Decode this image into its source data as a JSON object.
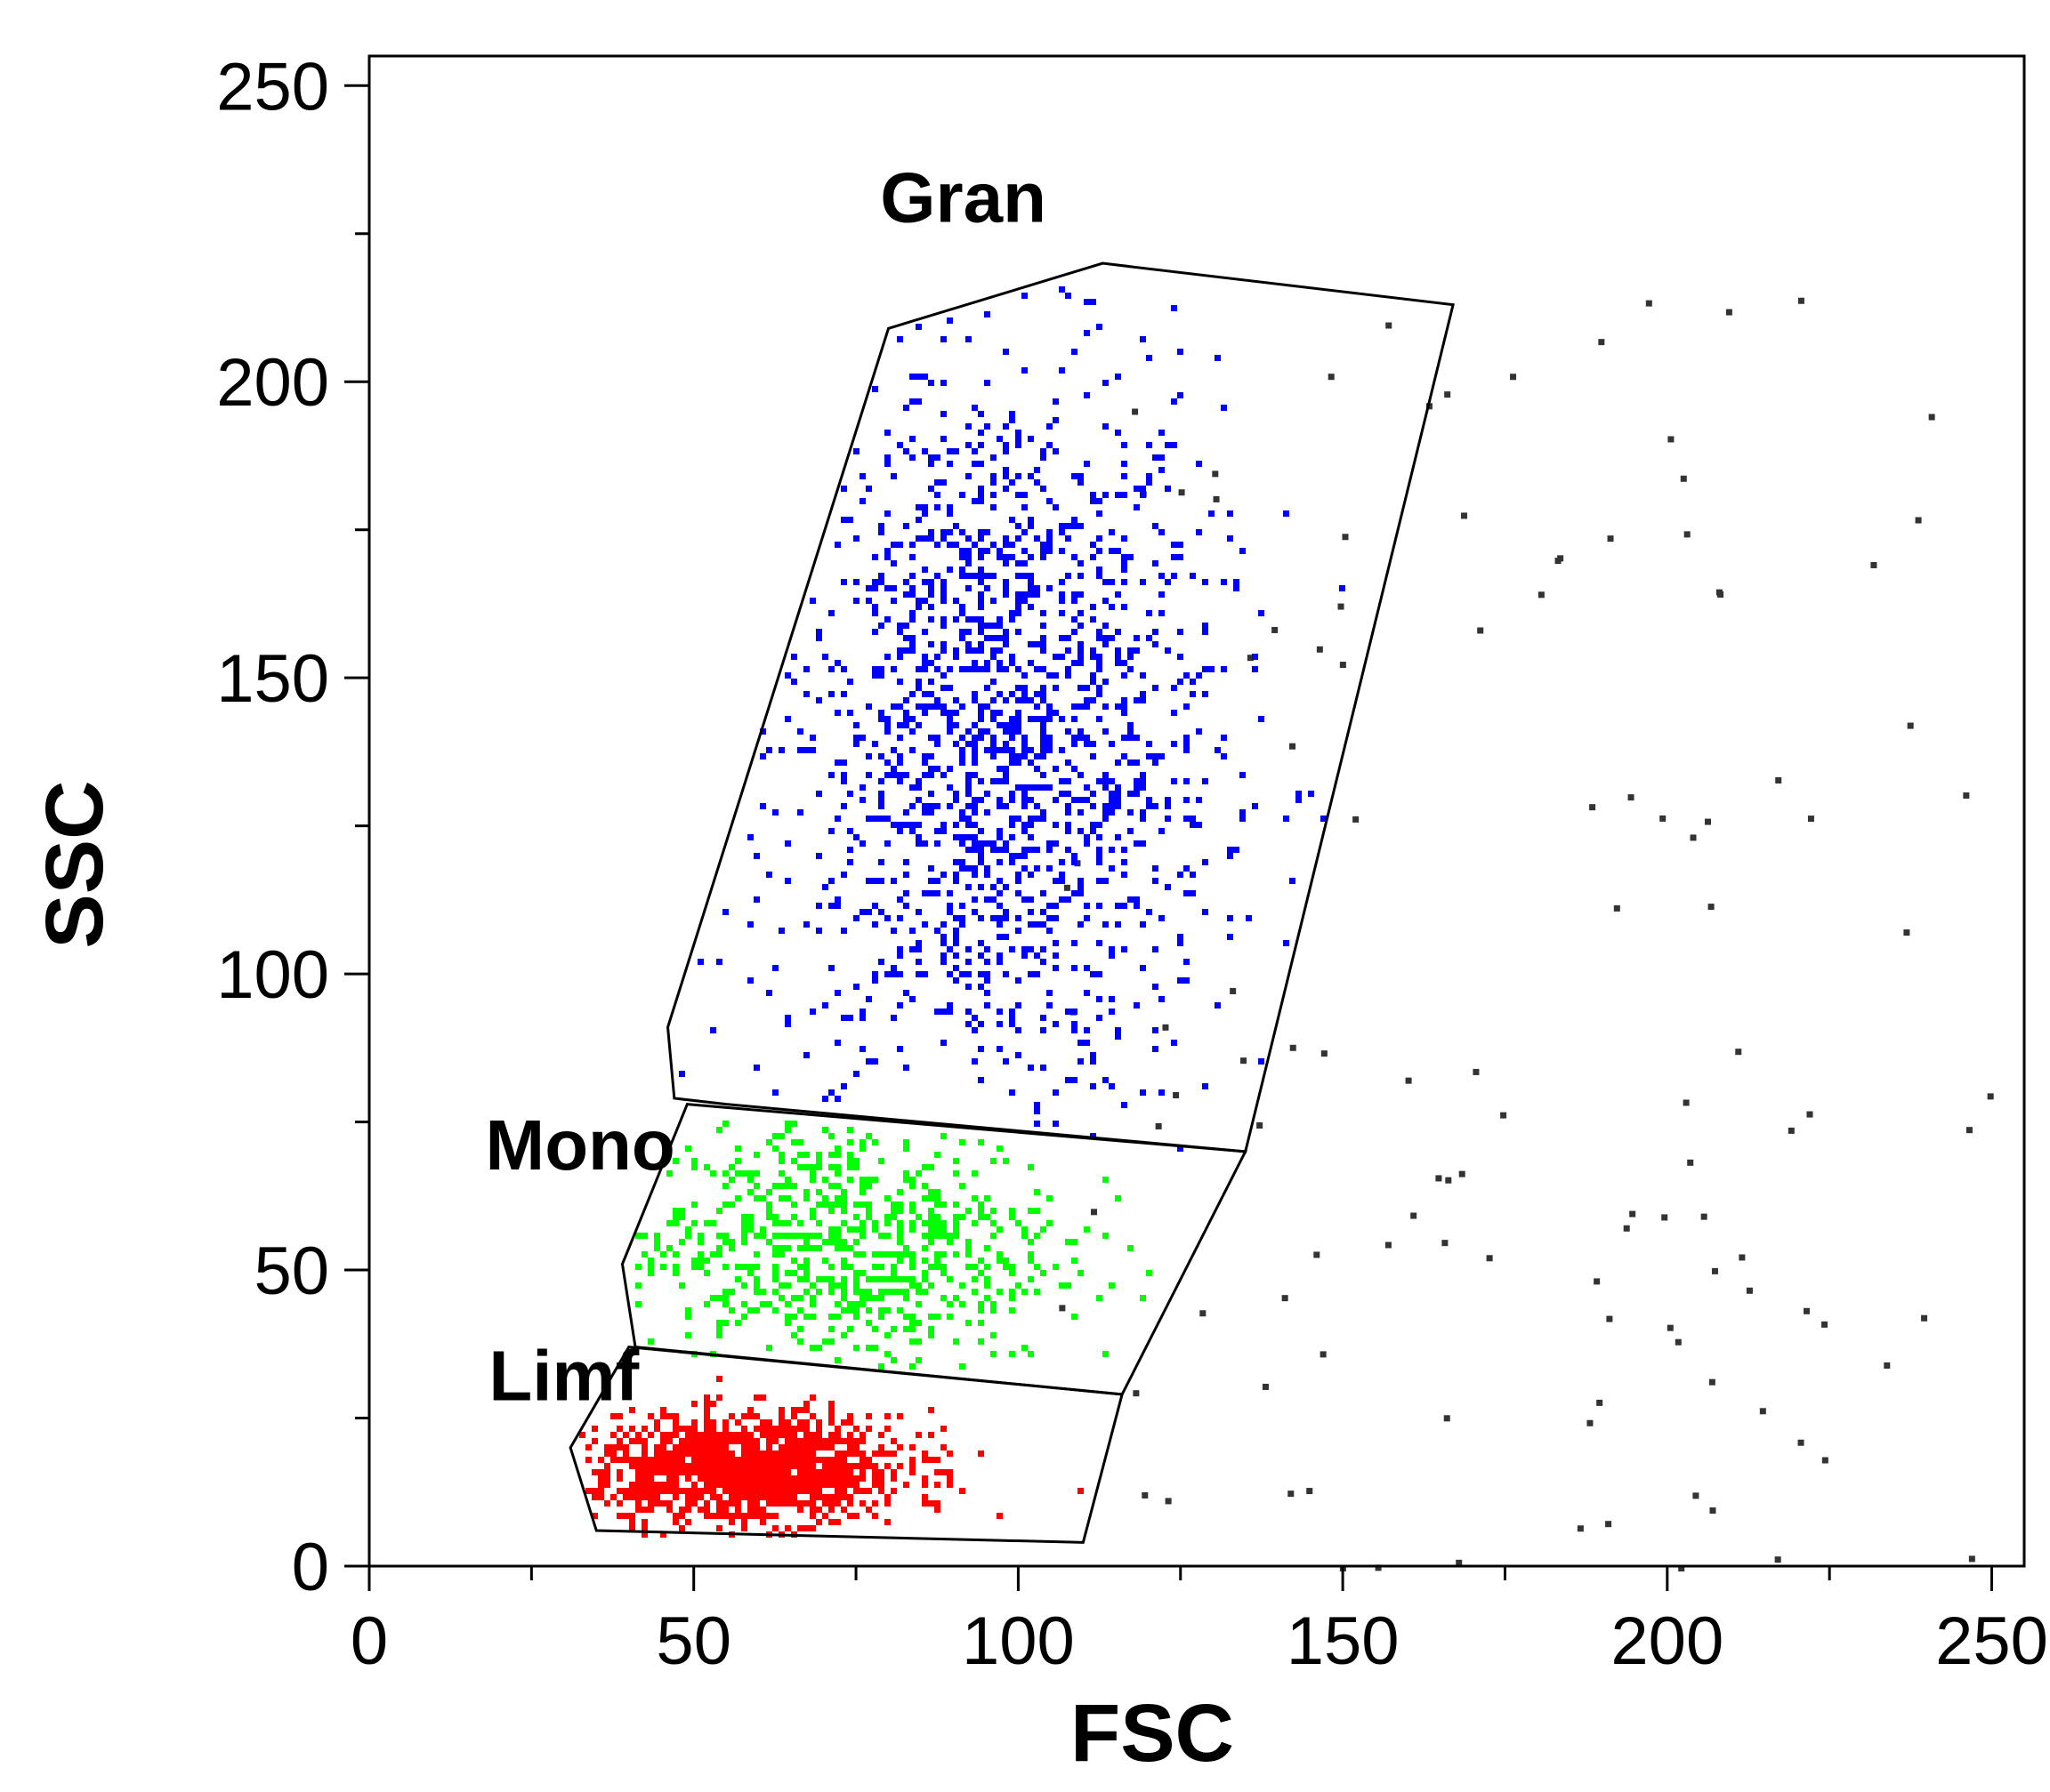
{
  "chart_data": {
    "type": "scatter",
    "title": "",
    "xlabel": "FSC",
    "ylabel": "SSC",
    "xlim": [
      0,
      255
    ],
    "ylim": [
      0,
      255
    ],
    "x_ticks": [
      0,
      50,
      100,
      150,
      200,
      250
    ],
    "y_ticks": [
      0,
      50,
      100,
      150,
      200,
      250
    ],
    "minor_tick_step": 25,
    "grid": false,
    "legend": "none",
    "gates": [
      {
        "label": "Gran",
        "color": "#0000ff",
        "polygon": [
          [
            80,
            209
          ],
          [
            113,
            220
          ],
          [
            167,
            213
          ],
          [
            135,
            70
          ],
          [
            55,
            78
          ],
          [
            47,
            79
          ],
          [
            46,
            91
          ]
        ],
        "cluster": {
          "center_x": 96,
          "center_y": 140,
          "spread_x": 17,
          "spread_y": 32,
          "points": 1500
        }
      },
      {
        "label": "Mono",
        "color": "#00ff00",
        "polygon": [
          [
            49,
            78
          ],
          [
            135,
            70
          ],
          [
            116,
            29
          ],
          [
            41,
            37
          ],
          [
            39,
            51
          ]
        ],
        "cluster": {
          "center_x": 72,
          "center_y": 55,
          "spread_x": 17,
          "spread_y": 11,
          "points": 700
        }
      },
      {
        "label": "Limf",
        "color": "#ff0000",
        "polygon": [
          [
            40,
            37
          ],
          [
            116,
            29
          ],
          [
            110,
            4
          ],
          [
            35,
            6
          ],
          [
            31,
            20
          ]
        ],
        "cluster": {
          "center_x": 58,
          "center_y": 17,
          "spread_x": 12,
          "spread_y": 4.5,
          "points": 1300
        }
      }
    ],
    "background_events": {
      "color": "#333333",
      "x_range": [
        105,
        250
      ],
      "y_range": [
        0,
        215
      ],
      "points": 120
    }
  }
}
